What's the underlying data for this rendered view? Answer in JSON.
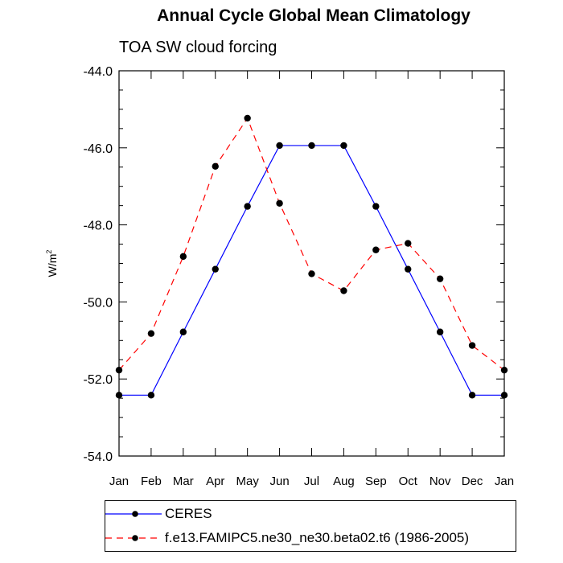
{
  "chart_data": {
    "type": "line",
    "title": "Annual Cycle Global Mean Climatology",
    "subtitle": "TOA SW cloud forcing",
    "ylabel": "W/m",
    "ylabel_sup": "2",
    "categories": [
      "Jan",
      "Feb",
      "Mar",
      "Apr",
      "May",
      "Jun",
      "Jul",
      "Aug",
      "Sep",
      "Oct",
      "Nov",
      "Dec",
      "Jan"
    ],
    "ylim": [
      -54.0,
      -44.0
    ],
    "yticks": [
      -54.0,
      -52.0,
      -50.0,
      -48.0,
      -46.0,
      -44.0
    ],
    "ytick_labels": [
      "-54.0",
      "-52.0",
      "-50.0",
      "-48.0",
      "-46.0",
      "-44.0"
    ],
    "series": [
      {
        "name": "CERES",
        "color": "#0000ff",
        "dash": "solid",
        "values": [
          -52.42,
          -52.42,
          -50.78,
          -49.15,
          -47.52,
          -45.94,
          -45.94,
          -45.94,
          -47.52,
          -49.15,
          -50.78,
          -52.42,
          -52.42
        ]
      },
      {
        "name": "f.e13.FAMIPC5.ne30_ne30.beta02.t6 (1986-2005)",
        "color": "#ff0000",
        "dash": "dashed",
        "values": [
          -51.77,
          -50.82,
          -48.82,
          -46.48,
          -45.23,
          -47.44,
          -49.27,
          -49.71,
          -48.65,
          -48.48,
          -49.4,
          -51.13,
          -51.77
        ]
      }
    ],
    "legend_position": "bottom"
  }
}
